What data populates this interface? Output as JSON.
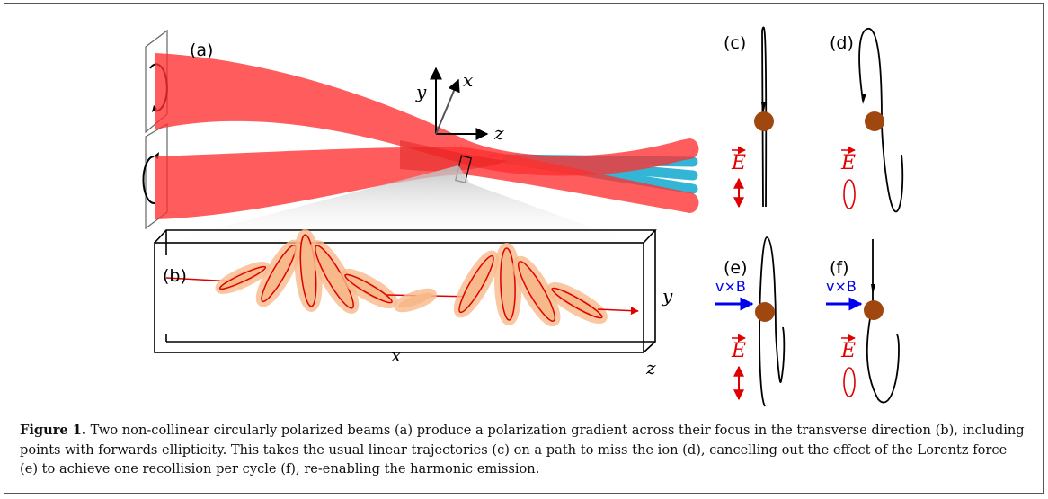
{
  "figure": {
    "panel_labels": {
      "a": "(a)",
      "b": "(b)",
      "c": "(c)",
      "d": "(d)",
      "e": "(e)",
      "f": "(f)"
    },
    "axis_labels": {
      "y": "y",
      "x": "x",
      "z": "z"
    },
    "field_labels": {
      "E": "E",
      "vxB": "v×B"
    },
    "colors": {
      "beam": "#ff3b3b",
      "harmonic": "#33b5d6",
      "ion": "#a0460f",
      "field": "#e00000",
      "lorentz": "#0000ee",
      "ellipse_band": "#f7b98a"
    }
  },
  "caption": {
    "label": "Figure 1.",
    "text": " Two non-collinear circularly polarized beams (a) produce a polarization gradient across their focus in the transverse direction (b), including points with forwards ellipticity. This takes the usual linear trajectories (c) on a path to miss the ion (d), cancelling out the effect of the Lorentz force (e) to achieve one recollision per cycle  (f), re-enabling the harmonic emission."
  }
}
